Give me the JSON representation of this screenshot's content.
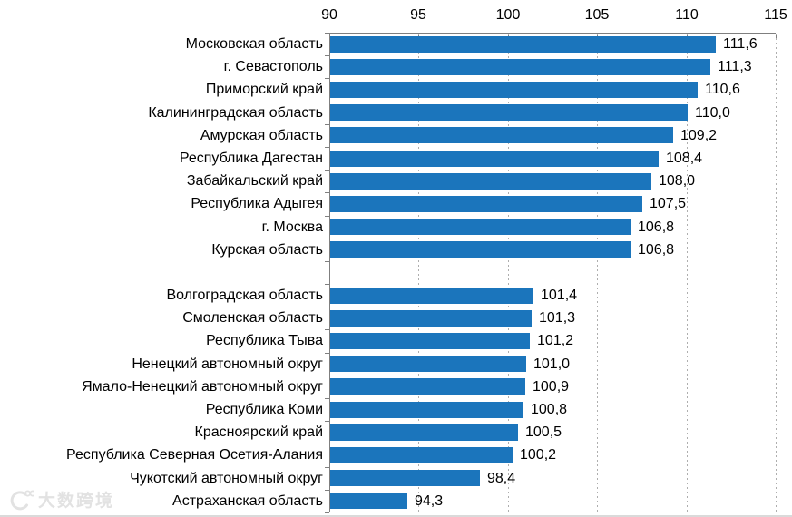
{
  "watermark": {
    "logo": "10100-logo",
    "text": "大数跨境"
  },
  "chart_data": {
    "type": "bar",
    "orientation": "horizontal",
    "title": "",
    "xlabel": "",
    "ylabel": "",
    "x_axis": {
      "position": "top",
      "min": 90,
      "max": 115,
      "ticks": [
        90,
        95,
        100,
        105,
        110,
        115
      ],
      "gridlines": "dashed-vertical"
    },
    "value_format": "comma-decimal",
    "groups": [
      {
        "name": "top-group",
        "rows": [
          {
            "label": "Московская область",
            "value": 111.6,
            "display": "111,6"
          },
          {
            "label": "г. Севастополь",
            "value": 111.3,
            "display": "111,3"
          },
          {
            "label": "Приморский край",
            "value": 110.6,
            "display": "110,6"
          },
          {
            "label": "Калининградская область",
            "value": 110.0,
            "display": "110,0"
          },
          {
            "label": "Амурская область",
            "value": 109.2,
            "display": "109,2"
          },
          {
            "label": "Республика Дагестан",
            "value": 108.4,
            "display": "108,4"
          },
          {
            "label": "Забайкальский край",
            "value": 108.0,
            "display": "108,0"
          },
          {
            "label": "Республика Адыгея",
            "value": 107.5,
            "display": "107,5"
          },
          {
            "label": "г. Москва",
            "value": 106.8,
            "display": "106,8"
          },
          {
            "label": "Курская область",
            "value": 106.8,
            "display": "106,8"
          }
        ]
      },
      {
        "name": "bottom-group",
        "rows": [
          {
            "label": "Волгоградская область",
            "value": 101.4,
            "display": "101,4"
          },
          {
            "label": "Смоленская область",
            "value": 101.3,
            "display": "101,3"
          },
          {
            "label": "Республика Тыва",
            "value": 101.2,
            "display": "101,2"
          },
          {
            "label": "Ненецкий автономный округ",
            "value": 101.0,
            "display": "101,0"
          },
          {
            "label": "Ямало-Ненецкий автономный округ",
            "value": 100.9,
            "display": "100,9"
          },
          {
            "label": "Республика Коми",
            "value": 100.8,
            "display": "100,8"
          },
          {
            "label": "Красноярский край",
            "value": 100.5,
            "display": "100,5"
          },
          {
            "label": "Республика Северная Осетия-Алания",
            "value": 100.2,
            "display": "100,2"
          },
          {
            "label": "Чукотский автономный округ",
            "value": 98.4,
            "display": "98,4"
          },
          {
            "label": "Астраханская область",
            "value": 94.3,
            "display": "94,3"
          }
        ]
      }
    ],
    "colors": {
      "bar": "#1b75bc",
      "gridline": "#aeaeae",
      "axis": "#7f7f7f",
      "text": "#000000",
      "watermark": "#e2e2e2"
    }
  }
}
